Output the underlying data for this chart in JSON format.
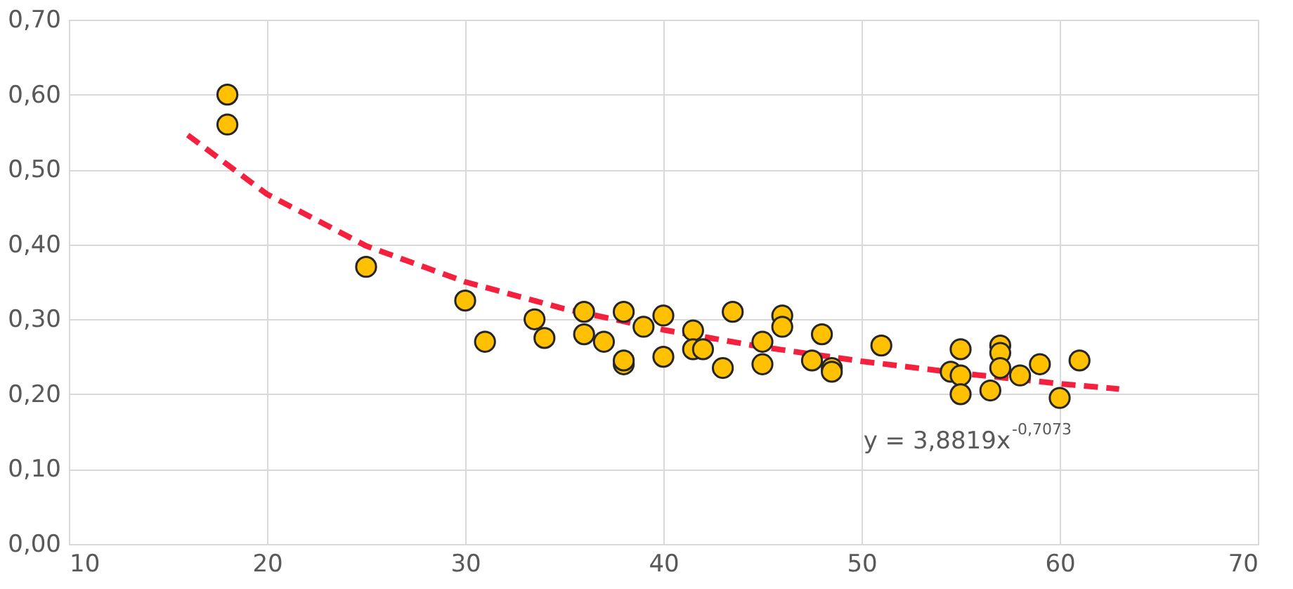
{
  "chart_data": {
    "type": "scatter",
    "xlim": [
      10,
      70
    ],
    "xticks": [
      10,
      20,
      30,
      40,
      50,
      60,
      70
    ],
    "ylim": [
      0,
      0.7
    ],
    "yticks": [
      {
        "value": 0,
        "label": "0,00"
      },
      {
        "value": 0.1,
        "label": "0,10"
      },
      {
        "value": 0.2,
        "label": "0,20"
      },
      {
        "value": 0.3,
        "label": "0,30"
      },
      {
        "value": 0.4,
        "label": "0,40"
      },
      {
        "value": 0.5,
        "label": "0,50"
      },
      {
        "value": 0.6,
        "label": "0,60"
      },
      {
        "value": 0.7,
        "label": "0,70"
      }
    ],
    "grid": true,
    "annotations": [
      "y = 3,8819x$^{-0,7073}$"
    ],
    "series": [
      {
        "marker": "circle",
        "color": "#ffc000",
        "x": [
          18,
          18,
          25,
          30,
          31,
          33.5,
          34,
          36,
          36,
          37,
          38,
          38,
          38,
          39,
          40,
          40,
          41.5,
          41.5,
          42,
          43,
          43.5,
          45,
          45,
          46,
          46,
          47.5,
          48,
          48.5,
          48.5,
          51,
          54.5,
          55,
          55,
          55,
          56.5,
          57,
          57,
          57,
          58,
          59,
          60,
          61
        ],
        "values": [
          0.6,
          0.56,
          0.37,
          0.325,
          0.27,
          0.3,
          0.275,
          0.31,
          0.28,
          0.27,
          0.31,
          0.24,
          0.245,
          0.29,
          0.305,
          0.25,
          0.285,
          0.26,
          0.26,
          0.235,
          0.31,
          0.27,
          0.24,
          0.305,
          0.29,
          0.245,
          0.28,
          0.235,
          0.23,
          0.265,
          0.23,
          0.26,
          0.225,
          0.2,
          0.205,
          0.265,
          0.255,
          0.235,
          0.225,
          0.24,
          0.195,
          0.245
        ]
      },
      {
        "type": "line",
        "marker": "none",
        "line_style": "dashed",
        "color": "#f5203e",
        "x": [
          16,
          20,
          25,
          30,
          35,
          40,
          45,
          50,
          55,
          60,
          63
        ],
        "values": [
          0.546,
          0.467,
          0.398,
          0.35,
          0.314,
          0.286,
          0.263,
          0.244,
          0.228,
          0.214,
          0.207
        ]
      }
    ]
  }
}
